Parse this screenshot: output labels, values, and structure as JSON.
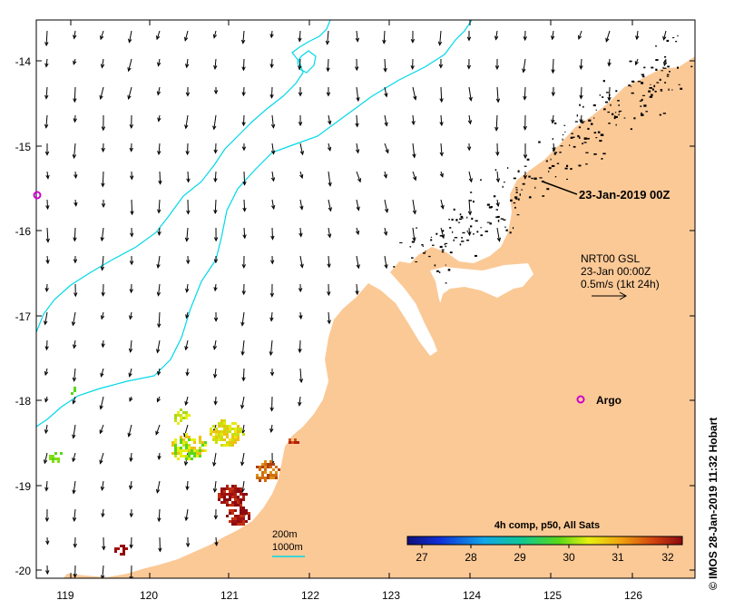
{
  "map": {
    "title_date": "23-Jan-2019 00Z",
    "product": {
      "name": "NRT00 GSL",
      "time": "23-Jan 00:00Z",
      "scale": "0.5m/s (1kt 24h)"
    },
    "argo_label": "Argo",
    "isobaths": {
      "shallow": "200m",
      "deep": "1000m"
    },
    "colorbar": {
      "title": "4h comp, p50, All Sats",
      "ticks": [
        "27",
        "28",
        "29",
        "30",
        "31",
        "32"
      ]
    },
    "lon_ticks": [
      "119",
      "120",
      "121",
      "122",
      "123",
      "124",
      "125",
      "126"
    ],
    "lat_ticks": [
      "-14",
      "-15",
      "-16",
      "-17",
      "-18",
      "-19",
      "-20"
    ],
    "credit": "© IMOS 28-Jan-2019 11:32 Hobart",
    "colors": {
      "land": "#fbc996",
      "isobath": "#00d8e8",
      "argo": "#cc00cc",
      "frame": "#000000"
    }
  }
}
